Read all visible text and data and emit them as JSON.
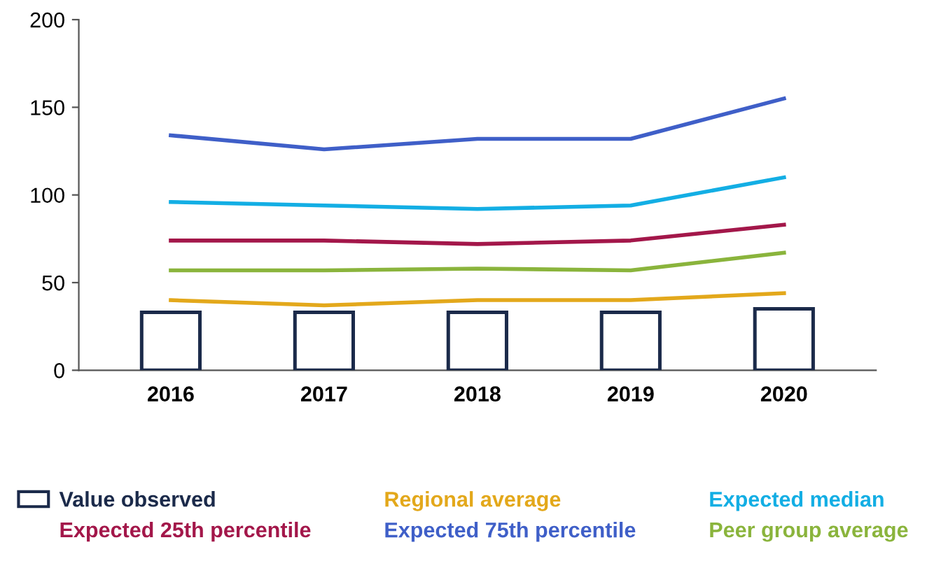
{
  "chart_data": {
    "type": "line",
    "categories": [
      "2016",
      "2017",
      "2018",
      "2019",
      "2020"
    ],
    "ylim": [
      0,
      200
    ],
    "yticks": [
      0,
      50,
      100,
      150,
      200
    ],
    "grid": false,
    "legend": "bottom",
    "marker": "none",
    "line_style": "solid",
    "series": [
      {
        "name": "Value observed",
        "type": "bar",
        "color": "#1b2a4a",
        "values": [
          33,
          33,
          33,
          33,
          35
        ]
      },
      {
        "name": "Regional average",
        "color": "#e3a81b",
        "values": [
          40,
          37,
          40,
          40,
          44
        ]
      },
      {
        "name": "Expected median",
        "color": "#13aee4",
        "values": [
          96,
          94,
          92,
          94,
          110
        ]
      },
      {
        "name": "Expected 25th percentile",
        "color": "#a3174a",
        "values": [
          74,
          74,
          72,
          74,
          83
        ]
      },
      {
        "name": "Expected 75th percentile",
        "color": "#3f5fc8",
        "values": [
          134,
          126,
          132,
          132,
          155
        ]
      },
      {
        "name": "Peer group average",
        "color": "#8ab43c",
        "values": [
          57,
          57,
          58,
          57,
          67
        ]
      }
    ]
  }
}
